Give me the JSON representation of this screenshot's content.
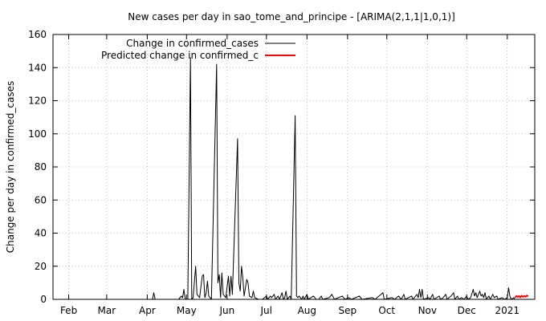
{
  "chart_data": {
    "type": "line",
    "title": "New cases per day in sao_tome_and_principe -  [ARIMA(2,1,1|1,0,1)]",
    "xlabel": "",
    "ylabel": "Change per day in confirmed_cases",
    "ylim": [
      0,
      160
    ],
    "yticks": [
      "0",
      "20",
      "40",
      "60",
      "80",
      "100",
      "120",
      "140",
      "160"
    ],
    "xlim": [
      "2020-01-20",
      "2021-01-22"
    ],
    "xticks": [
      {
        "date": "2020-02-01",
        "label": "Feb"
      },
      {
        "date": "2020-03-01",
        "label": "Mar"
      },
      {
        "date": "2020-04-01",
        "label": "Apr"
      },
      {
        "date": "2020-05-01",
        "label": "May"
      },
      {
        "date": "2020-06-01",
        "label": "Jun"
      },
      {
        "date": "2020-07-01",
        "label": "Jul"
      },
      {
        "date": "2020-08-01",
        "label": "Aug"
      },
      {
        "date": "2020-09-01",
        "label": "Sep"
      },
      {
        "date": "2020-10-01",
        "label": "Oct"
      },
      {
        "date": "2020-11-01",
        "label": "Nov"
      },
      {
        "date": "2020-12-01",
        "label": "Dec"
      },
      {
        "date": "2021-01-01",
        "label": "2021"
      }
    ],
    "grid": true,
    "legend_position": "top-left",
    "series": [
      {
        "name": "Change in confirmed_cases",
        "color": "#000000",
        "points": [
          [
            "2020-01-20",
            0
          ],
          [
            "2020-04-05",
            0
          ],
          [
            "2020-04-06",
            4
          ],
          [
            "2020-04-07",
            0
          ],
          [
            "2020-04-25",
            0
          ],
          [
            "2020-04-27",
            2
          ],
          [
            "2020-04-28",
            1
          ],
          [
            "2020-04-29",
            6
          ],
          [
            "2020-04-30",
            0
          ],
          [
            "2020-05-02",
            0
          ],
          [
            "2020-05-04",
            146
          ],
          [
            "2020-05-05",
            0
          ],
          [
            "2020-05-06",
            1
          ],
          [
            "2020-05-08",
            20
          ],
          [
            "2020-05-09",
            3
          ],
          [
            "2020-05-11",
            1
          ],
          [
            "2020-05-13",
            14
          ],
          [
            "2020-05-14",
            15
          ],
          [
            "2020-05-15",
            1
          ],
          [
            "2020-05-16",
            4
          ],
          [
            "2020-05-17",
            11
          ],
          [
            "2020-05-18",
            2
          ],
          [
            "2020-05-20",
            0
          ],
          [
            "2020-05-24",
            142
          ],
          [
            "2020-05-25",
            10
          ],
          [
            "2020-05-26",
            15
          ],
          [
            "2020-05-27",
            1
          ],
          [
            "2020-05-28",
            16
          ],
          [
            "2020-05-29",
            3
          ],
          [
            "2020-05-30",
            2
          ],
          [
            "2020-05-31",
            1
          ],
          [
            "2020-06-02",
            14
          ],
          [
            "2020-06-03",
            2
          ],
          [
            "2020-06-04",
            14
          ],
          [
            "2020-06-05",
            3
          ],
          [
            "2020-06-09",
            97
          ],
          [
            "2020-06-10",
            10
          ],
          [
            "2020-06-11",
            5
          ],
          [
            "2020-06-12",
            20
          ],
          [
            "2020-06-13",
            13
          ],
          [
            "2020-06-14",
            2
          ],
          [
            "2020-06-16",
            12
          ],
          [
            "2020-06-17",
            10
          ],
          [
            "2020-06-18",
            2
          ],
          [
            "2020-06-20",
            1
          ],
          [
            "2020-06-21",
            5
          ],
          [
            "2020-06-22",
            1
          ],
          [
            "2020-06-25",
            0
          ],
          [
            "2020-06-28",
            0
          ],
          [
            "2020-07-01",
            2
          ],
          [
            "2020-07-02",
            0
          ],
          [
            "2020-07-04",
            2
          ],
          [
            "2020-07-05",
            1
          ],
          [
            "2020-07-07",
            3
          ],
          [
            "2020-07-08",
            0
          ],
          [
            "2020-07-10",
            2
          ],
          [
            "2020-07-11",
            0
          ],
          [
            "2020-07-13",
            4
          ],
          [
            "2020-07-14",
            0
          ],
          [
            "2020-07-15",
            1
          ],
          [
            "2020-07-16",
            5
          ],
          [
            "2020-07-17",
            0
          ],
          [
            "2020-07-19",
            2
          ],
          [
            "2020-07-20",
            0
          ],
          [
            "2020-07-23",
            111
          ],
          [
            "2020-07-24",
            2
          ],
          [
            "2020-07-25",
            1
          ],
          [
            "2020-07-26",
            2
          ],
          [
            "2020-07-28",
            0
          ],
          [
            "2020-07-29",
            2
          ],
          [
            "2020-07-30",
            0
          ],
          [
            "2020-08-01",
            3
          ],
          [
            "2020-08-02",
            0
          ],
          [
            "2020-08-04",
            1
          ],
          [
            "2020-08-06",
            2
          ],
          [
            "2020-08-08",
            0
          ],
          [
            "2020-08-10",
            0
          ],
          [
            "2020-08-12",
            2
          ],
          [
            "2020-08-13",
            0
          ],
          [
            "2020-08-18",
            1
          ],
          [
            "2020-08-20",
            3
          ],
          [
            "2020-08-22",
            0
          ],
          [
            "2020-08-28",
            2
          ],
          [
            "2020-08-30",
            0
          ],
          [
            "2020-09-02",
            1
          ],
          [
            "2020-09-04",
            0
          ],
          [
            "2020-09-10",
            2
          ],
          [
            "2020-09-12",
            0
          ],
          [
            "2020-09-20",
            1
          ],
          [
            "2020-09-22",
            0
          ],
          [
            "2020-09-28",
            4
          ],
          [
            "2020-09-29",
            0
          ],
          [
            "2020-10-05",
            1
          ],
          [
            "2020-10-07",
            0
          ],
          [
            "2020-10-10",
            2
          ],
          [
            "2020-10-12",
            0
          ],
          [
            "2020-10-14",
            3
          ],
          [
            "2020-10-15",
            0
          ],
          [
            "2020-10-20",
            2
          ],
          [
            "2020-10-21",
            0
          ],
          [
            "2020-10-24",
            3
          ],
          [
            "2020-10-25",
            1
          ],
          [
            "2020-10-26",
            6
          ],
          [
            "2020-10-27",
            1
          ],
          [
            "2020-10-28",
            6
          ],
          [
            "2020-10-29",
            0
          ],
          [
            "2020-11-02",
            1
          ],
          [
            "2020-11-03",
            0
          ],
          [
            "2020-11-05",
            3
          ],
          [
            "2020-11-06",
            0
          ],
          [
            "2020-11-10",
            2
          ],
          [
            "2020-11-11",
            0
          ],
          [
            "2020-11-13",
            1
          ],
          [
            "2020-11-15",
            3
          ],
          [
            "2020-11-16",
            0
          ],
          [
            "2020-11-19",
            2
          ],
          [
            "2020-11-20",
            3
          ],
          [
            "2020-11-21",
            4
          ],
          [
            "2020-11-22",
            0
          ],
          [
            "2020-11-24",
            2
          ],
          [
            "2020-11-25",
            0
          ],
          [
            "2020-11-27",
            1
          ],
          [
            "2020-11-29",
            0
          ],
          [
            "2020-12-01",
            2
          ],
          [
            "2020-12-02",
            0
          ],
          [
            "2020-12-04",
            1
          ],
          [
            "2020-12-06",
            6
          ],
          [
            "2020-12-07",
            2
          ],
          [
            "2020-12-08",
            4
          ],
          [
            "2020-12-09",
            1
          ],
          [
            "2020-12-10",
            3
          ],
          [
            "2020-12-11",
            5
          ],
          [
            "2020-12-12",
            2
          ],
          [
            "2020-12-13",
            3
          ],
          [
            "2020-12-14",
            1
          ],
          [
            "2020-12-15",
            4
          ],
          [
            "2020-12-16",
            0
          ],
          [
            "2020-12-18",
            2
          ],
          [
            "2020-12-19",
            0
          ],
          [
            "2020-12-21",
            3
          ],
          [
            "2020-12-22",
            1
          ],
          [
            "2020-12-24",
            2
          ],
          [
            "2020-12-25",
            0
          ],
          [
            "2020-12-28",
            1
          ],
          [
            "2020-12-30",
            0
          ],
          [
            "2021-01-01",
            1
          ],
          [
            "2021-01-02",
            7
          ],
          [
            "2021-01-03",
            2
          ],
          [
            "2021-01-04",
            0
          ],
          [
            "2021-01-06",
            1
          ],
          [
            "2021-01-07",
            0
          ]
        ]
      },
      {
        "name": "Predicted change in confirmed_c",
        "color": "#ff0000",
        "points": [
          [
            "2021-01-07",
            1
          ],
          [
            "2021-01-08",
            2
          ],
          [
            "2021-01-09",
            1.5
          ],
          [
            "2021-01-10",
            2
          ],
          [
            "2021-01-11",
            1.2
          ],
          [
            "2021-01-12",
            2.2
          ],
          [
            "2021-01-13",
            1.5
          ],
          [
            "2021-01-14",
            2
          ],
          [
            "2021-01-15",
            1.6
          ],
          [
            "2021-01-16",
            2.3
          ],
          [
            "2021-01-17",
            1.8
          ]
        ]
      }
    ]
  }
}
